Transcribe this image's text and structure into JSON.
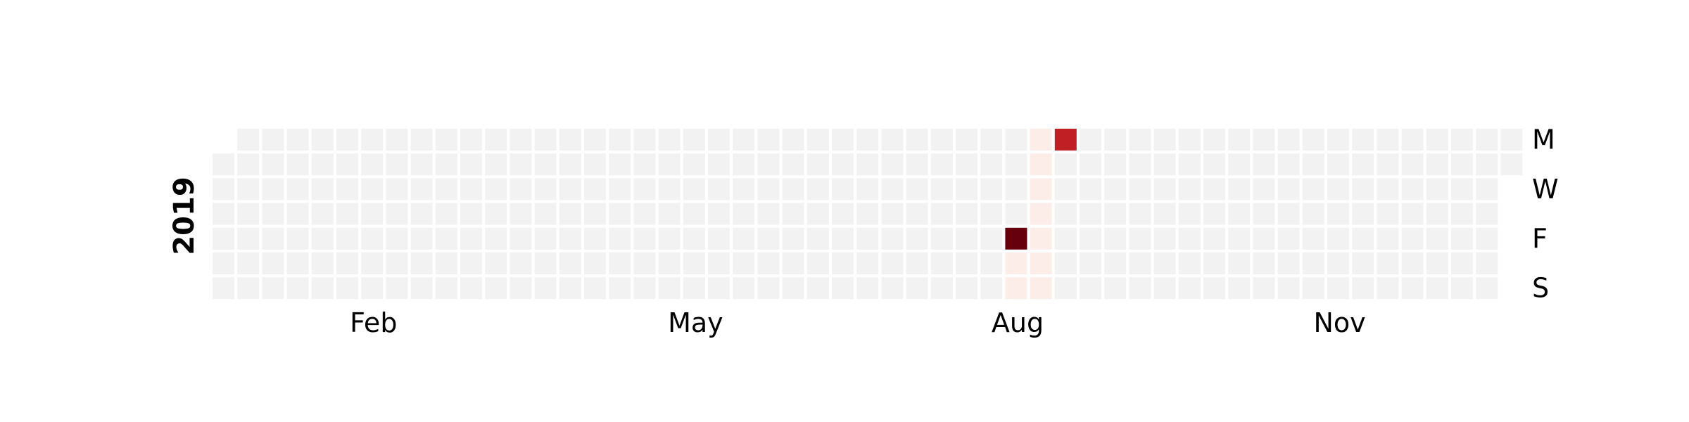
{
  "chart_data": {
    "type": "heatmap",
    "year": "2019",
    "month_labels": [
      "Feb",
      "May",
      "Aug",
      "Nov"
    ],
    "day_labels": [
      "M",
      "W",
      "F",
      "S"
    ],
    "colors": {
      "empty": "#f2f2f2",
      "scale": [
        "#fff5f0",
        "#d62728",
        "#67000d"
      ]
    },
    "values": [
      {
        "date": "2019-08-16",
        "value": 1.0
      },
      {
        "date": "2019-08-26",
        "value": 0.6
      },
      {
        "date": "2019-08-17",
        "value": 0.02
      },
      {
        "date": "2019-08-18",
        "value": 0.02
      },
      {
        "date": "2019-08-19",
        "value": 0.02
      },
      {
        "date": "2019-08-20",
        "value": 0.02
      },
      {
        "date": "2019-08-21",
        "value": 0.02
      },
      {
        "date": "2019-08-22",
        "value": 0.02
      },
      {
        "date": "2019-08-23",
        "value": 0.02
      },
      {
        "date": "2019-08-24",
        "value": 0.02
      },
      {
        "date": "2019-08-25",
        "value": 0.02
      }
    ]
  }
}
